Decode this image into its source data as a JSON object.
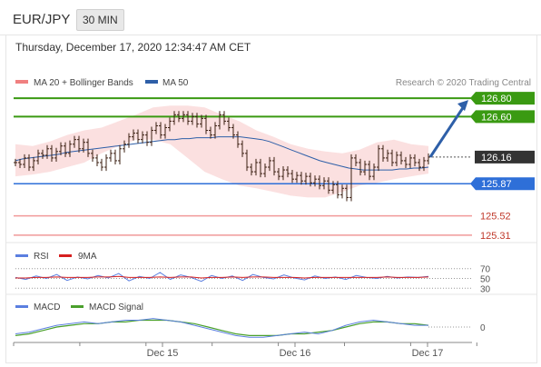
{
  "header": {
    "pair": "EUR/JPY",
    "timeframe": "30 MIN",
    "timestamp": "Thursday, December 17, 2020 12:34:47 AM CET"
  },
  "legend": {
    "ma20": {
      "label": "MA 20 + Bollinger Bands",
      "color": "#f08080"
    },
    "ma50": {
      "label": "MA 50",
      "color": "#2e5fa8"
    },
    "credit": "Research © 2020 Trading Central"
  },
  "rsi_legend": {
    "rsi": "RSI",
    "ma9": "9MA"
  },
  "macd_legend": {
    "macd": "MACD",
    "signal": "MACD Signal"
  },
  "chart_data": {
    "type": "line",
    "price_ylim": [
      125.25,
      126.88
    ],
    "levels": [
      {
        "value": 126.8,
        "label": "126.80",
        "kind": "resistance"
      },
      {
        "value": 126.6,
        "label": "126.60",
        "kind": "resistance"
      },
      {
        "value": 126.16,
        "label": "126.16",
        "kind": "current"
      },
      {
        "value": 125.87,
        "label": "125.87",
        "kind": "support"
      },
      {
        "value": 125.52,
        "label": "125.52",
        "kind": "support2"
      },
      {
        "value": 125.31,
        "label": "125.31",
        "kind": "support2"
      }
    ],
    "price": [
      126.1,
      126.08,
      126.15,
      126.05,
      126.12,
      126.2,
      126.18,
      126.25,
      126.15,
      126.22,
      126.28,
      126.2,
      126.3,
      126.35,
      126.25,
      126.32,
      126.2,
      126.15,
      126.1,
      126.05,
      126.15,
      126.2,
      126.12,
      126.25,
      126.3,
      126.38,
      126.42,
      126.35,
      126.4,
      126.32,
      126.45,
      126.5,
      126.4,
      126.48,
      126.55,
      126.62,
      126.58,
      126.62,
      126.55,
      126.6,
      126.52,
      126.58,
      126.45,
      126.4,
      126.5,
      126.62,
      126.55,
      126.48,
      126.4,
      126.3,
      126.2,
      126.05,
      126.0,
      126.1,
      125.98,
      126.05,
      126.12,
      126.0,
      125.95,
      126.02,
      125.98,
      125.92,
      125.96,
      125.9,
      125.95,
      125.88,
      125.92,
      125.85,
      125.9,
      125.8,
      125.86,
      125.75,
      125.82,
      125.72,
      126.15,
      126.1,
      126.0,
      126.08,
      125.95,
      126.05,
      126.25,
      126.15,
      126.2,
      126.1,
      126.18,
      126.12,
      126.08,
      126.15,
      126.1,
      126.05,
      126.12,
      126.16
    ],
    "ma50": [
      126.12,
      126.14,
      126.15,
      126.16,
      126.17,
      126.18,
      126.19,
      126.21,
      126.22,
      126.23,
      126.24,
      126.25,
      126.26,
      126.27,
      126.28,
      126.29,
      126.3,
      126.31,
      126.32,
      126.33,
      126.34,
      126.35,
      126.35,
      126.36,
      126.36,
      126.37,
      126.37,
      126.37,
      126.38,
      126.38,
      126.38,
      126.38,
      126.37,
      126.36,
      126.35,
      126.33,
      126.3,
      126.27,
      126.24,
      126.21,
      126.18,
      126.15,
      126.12,
      126.1,
      126.08,
      126.06,
      126.04,
      126.03,
      126.02,
      126.02,
      126.02,
      126.02,
      126.02,
      126.03,
      126.03,
      126.04,
      126.04,
      126.05
    ],
    "ma20_band_upper": [
      126.3,
      126.28,
      126.33,
      126.4,
      126.45,
      126.48,
      126.55,
      126.62,
      126.7,
      126.72,
      126.72,
      126.7,
      126.62,
      126.55,
      126.45,
      126.38,
      126.3,
      126.25,
      126.22,
      126.2,
      126.24,
      126.32,
      126.35,
      126.3,
      126.28
    ],
    "ma20_band_lower": [
      125.95,
      125.97,
      126.0,
      126.05,
      126.1,
      126.2,
      126.28,
      126.35,
      126.35,
      126.3,
      126.15,
      126.0,
      125.92,
      125.85,
      125.82,
      125.78,
      125.74,
      125.72,
      125.72,
      125.78,
      125.85,
      125.88,
      125.92,
      125.95,
      125.98
    ],
    "rsi_ylim": [
      25,
      75
    ],
    "rsi_levels": [
      70,
      50,
      30
    ],
    "rsi": [
      52,
      48,
      55,
      50,
      58,
      46,
      53,
      49,
      56,
      51,
      60,
      45,
      54,
      50,
      62,
      48,
      57,
      52,
      44,
      56,
      50,
      55,
      46,
      58,
      52,
      49,
      57,
      51,
      47,
      55,
      50,
      53,
      48,
      56,
      52,
      50,
      54,
      51,
      53,
      52,
      54
    ],
    "rsi_ma9": [
      51,
      51,
      52,
      52,
      53,
      52,
      52,
      52,
      53,
      53,
      54,
      52,
      52,
      52,
      53,
      52,
      53,
      53,
      51,
      52,
      52,
      53,
      52,
      53,
      53,
      52,
      52,
      52,
      51,
      52,
      52,
      52,
      52,
      52,
      52,
      52,
      53,
      52,
      52,
      52,
      53
    ],
    "macd_zero": "0",
    "macd": [
      -0.04,
      -0.03,
      -0.01,
      0.01,
      0.02,
      0.03,
      0.02,
      0.03,
      0.04,
      0.04,
      0.05,
      0.04,
      0.03,
      0.01,
      -0.01,
      -0.03,
      -0.05,
      -0.06,
      -0.06,
      -0.05,
      -0.04,
      -0.03,
      -0.04,
      -0.02,
      0.01,
      0.03,
      0.04,
      0.03,
      0.02,
      0.01,
      0.01
    ],
    "macd_signal": [
      -0.05,
      -0.04,
      -0.02,
      0.0,
      0.01,
      0.02,
      0.02,
      0.03,
      0.03,
      0.04,
      0.04,
      0.04,
      0.03,
      0.02,
      0.0,
      -0.02,
      -0.04,
      -0.05,
      -0.05,
      -0.05,
      -0.04,
      -0.04,
      -0.03,
      -0.02,
      0.0,
      0.02,
      0.03,
      0.03,
      0.02,
      0.02,
      0.01
    ],
    "x_ticks": [
      "Dec 15",
      "Dec 16",
      "Dec 17"
    ]
  }
}
